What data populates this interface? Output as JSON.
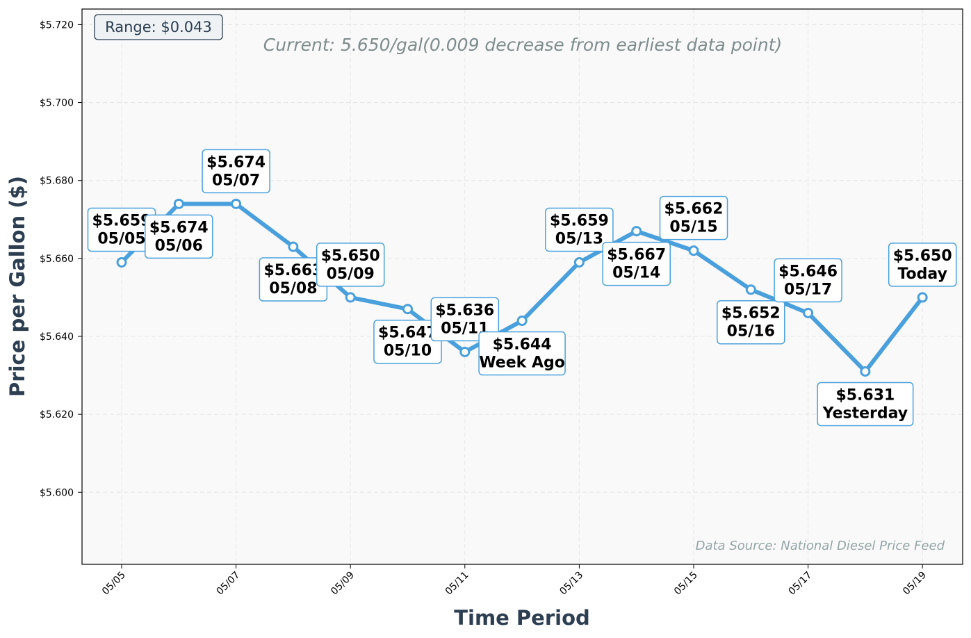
{
  "chart_data": {
    "type": "line",
    "title": "",
    "xlabel": "Time Period",
    "ylabel": "Price per Gallon ($)",
    "ylim": [
      5.5815,
      5.724
    ],
    "yticks": [
      5.6,
      5.62,
      5.64,
      5.66,
      5.68,
      5.7,
      5.72
    ],
    "ytick_labels": [
      "$5.600",
      "$5.620",
      "$5.640",
      "$5.660",
      "$5.680",
      "$5.700",
      "$5.720"
    ],
    "xtick_labels": [
      "05/05",
      "05/07",
      "05/09",
      "05/11",
      "05/13",
      "05/15",
      "05/17",
      "05/19"
    ],
    "grid": true,
    "line_color": "#4aa0dc",
    "points": [
      {
        "date": "05/05",
        "value": 5.659,
        "price_label": "$5.659",
        "tag": "05/05"
      },
      {
        "date": "05/06",
        "value": 5.674,
        "price_label": "$5.674",
        "tag": "05/06"
      },
      {
        "date": "05/07",
        "value": 5.674,
        "price_label": "$5.674",
        "tag": "05/07"
      },
      {
        "date": "05/08",
        "value": 5.663,
        "price_label": "$5.663",
        "tag": "05/08"
      },
      {
        "date": "05/09",
        "value": 5.65,
        "price_label": "$5.650",
        "tag": "05/09"
      },
      {
        "date": "05/10",
        "value": 5.647,
        "price_label": "$5.647",
        "tag": "05/10"
      },
      {
        "date": "05/11",
        "value": 5.636,
        "price_label": "$5.636",
        "tag": "05/11"
      },
      {
        "date": "05/12",
        "value": 5.644,
        "price_label": "$5.644",
        "tag": "Week Ago"
      },
      {
        "date": "05/13",
        "value": 5.659,
        "price_label": "$5.659",
        "tag": "05/13"
      },
      {
        "date": "05/14",
        "value": 5.667,
        "price_label": "$5.667",
        "tag": "05/14"
      },
      {
        "date": "05/15",
        "value": 5.662,
        "price_label": "$5.662",
        "tag": "05/15"
      },
      {
        "date": "05/16",
        "value": 5.652,
        "price_label": "$5.652",
        "tag": "05/16"
      },
      {
        "date": "05/17",
        "value": 5.646,
        "price_label": "$5.646",
        "tag": "05/17"
      },
      {
        "date": "05/18",
        "value": 5.631,
        "price_label": "$5.631",
        "tag": "Yesterday"
      },
      {
        "date": "05/19",
        "value": 5.65,
        "price_label": "$5.650",
        "tag": "Today"
      }
    ],
    "annotations": {
      "range": "Range: $0.043",
      "current": "Current: 5.650/gal(0.009 decrease from earliest data point)",
      "source": "Data Source: National Diesel Price Feed"
    }
  }
}
